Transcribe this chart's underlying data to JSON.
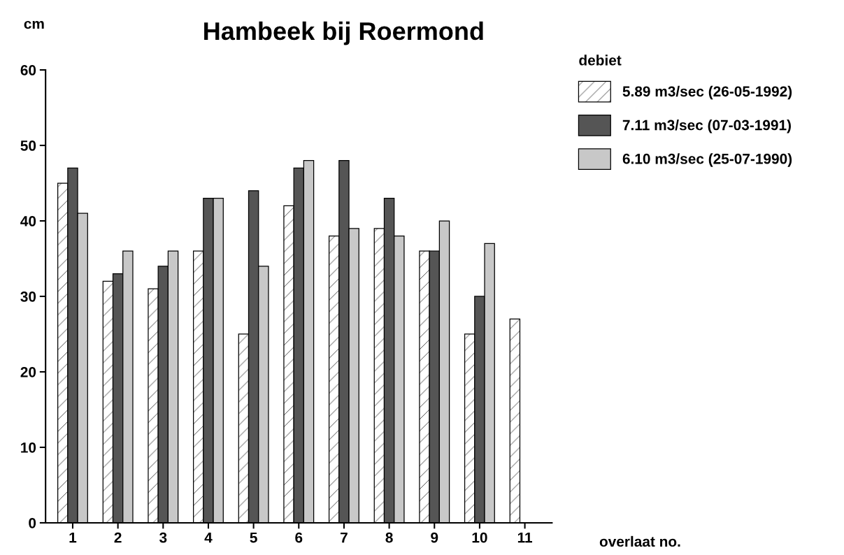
{
  "chart_data": {
    "type": "bar",
    "title": "Hambeek bij Roermond",
    "ylabel": "cm",
    "xlabel": "overlaat no.",
    "legend_title": "debiet",
    "categories": [
      "1",
      "2",
      "3",
      "4",
      "5",
      "6",
      "7",
      "8",
      "9",
      "10",
      "11"
    ],
    "series": [
      {
        "name": "5.89 m3/sec (26-05-1992)",
        "color": "#000000",
        "values": [
          45,
          32,
          31,
          36,
          25,
          42,
          38,
          39,
          36,
          25,
          27
        ]
      },
      {
        "name": "7.11 m3/sec (07-03-1991)",
        "color": "#555555",
        "values": [
          47,
          33,
          34,
          43,
          44,
          47,
          48,
          43,
          36,
          30,
          null
        ]
      },
      {
        "name": "6.10 m3/sec (25-07-1990)",
        "color": "#c8c8c8",
        "values": [
          41,
          36,
          36,
          43,
          34,
          48,
          39,
          38,
          40,
          37,
          null
        ]
      }
    ],
    "ylim": [
      0,
      60
    ],
    "yticks": [
      0,
      10,
      20,
      30,
      40,
      50,
      60
    ],
    "grid": false,
    "legend": "top right"
  }
}
